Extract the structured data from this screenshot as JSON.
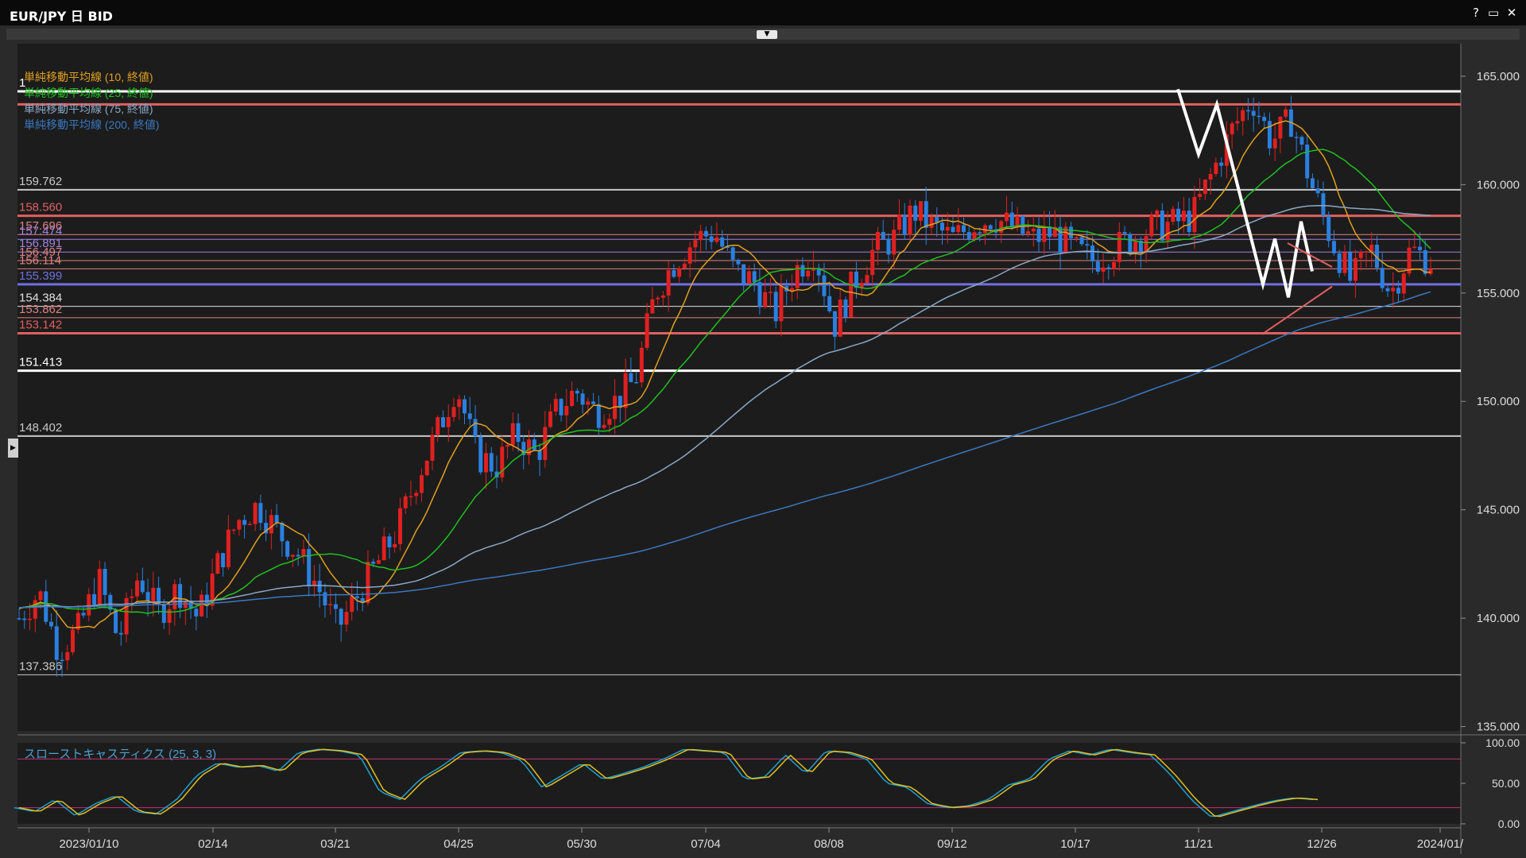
{
  "window": {
    "title": "EUR/JPY 日 BID",
    "buttons": [
      "?",
      "▭",
      "✕"
    ]
  },
  "chart_data": {
    "type": "candlestick",
    "instrument": "EUR/JPY",
    "timeframe": "日",
    "price_type": "BID",
    "x_labels": [
      "2023/01/10",
      "02/14",
      "03/21",
      "04/25",
      "05/30",
      "07/04",
      "08/08",
      "09/12",
      "10/17",
      "11/21",
      "12/26",
      "2024/01/"
    ],
    "y_ticks": [
      "165.000",
      "160.000",
      "155.000",
      "150.000",
      "145.000",
      "140.000",
      "135.000"
    ],
    "ylim": [
      134.8,
      166.5
    ],
    "price_path": [
      140.0,
      141.2,
      138.5,
      139.5,
      141.8,
      139.0,
      142.0,
      140.2,
      141.4,
      140.0,
      142.5,
      144.5,
      145.2,
      144.0,
      143.0,
      141.5,
      139.5,
      141.0,
      142.5,
      144.0,
      146.5,
      148.5,
      150.8,
      147.5,
      147.0,
      148.5,
      147.5,
      149.5,
      150.5,
      149.5,
      150.0,
      151.0,
      155.0,
      156.5,
      157.5,
      157.8,
      156.0,
      155.5,
      154.0,
      156.0,
      157.0,
      153.5,
      155.5,
      157.0,
      157.5,
      158.8,
      158.0,
      157.5,
      158.2,
      158.5,
      158.0,
      157.5,
      157.8,
      157.0,
      156.5,
      157.0,
      157.5,
      158.0,
      158.2,
      158.5,
      160.5,
      162.5,
      164.0,
      162.0,
      163.0,
      160.0,
      157.5,
      155.5,
      157.0,
      155.0,
      157.0,
      156.5
    ],
    "moving_averages": [
      {
        "name": "単純移動平均線 (10, 終値)",
        "color": "#e0a020",
        "period": 10
      },
      {
        "name": "単純移動平均線 (25, 終値)",
        "color": "#20c020",
        "period": 25
      },
      {
        "name": "単純移動平均線 (75, 終値)",
        "color": "#8aa8c8",
        "period": 75
      },
      {
        "name": "単純移動平均線 (200, 終値)",
        "color": "#3a78c0",
        "period": 200
      }
    ],
    "levels": [
      {
        "value": 164.3,
        "label": "1",
        "color": "#ffffff",
        "width": 3
      },
      {
        "value": 163.7,
        "label": "",
        "color": "#e06060",
        "width": 3
      },
      {
        "value": 159.762,
        "label": "159.762",
        "color": "#c8c8c8",
        "width": 2
      },
      {
        "value": 158.56,
        "label": "158.560",
        "color": "#e06060",
        "width": 3
      },
      {
        "value": 157.696,
        "label": "157.696",
        "color": "#e08080",
        "width": 1
      },
      {
        "value": 157.474,
        "label": "157.474",
        "color": "#a080e0",
        "width": 1
      },
      {
        "value": 156.891,
        "label": "156.891",
        "color": "#a080e0",
        "width": 1
      },
      {
        "value": 156.497,
        "label": "156.497",
        "color": "#e08080",
        "width": 1
      },
      {
        "value": 156.114,
        "label": "156.114",
        "color": "#e08080",
        "width": 1
      },
      {
        "value": 155.399,
        "label": "155.399",
        "color": "#7070e0",
        "width": 3
      },
      {
        "value": 154.384,
        "label": "154.384",
        "color": "#e0e0e0",
        "width": 1
      },
      {
        "value": 153.862,
        "label": "153.862",
        "color": "#e08080",
        "width": 1
      },
      {
        "value": 153.142,
        "label": "153.142",
        "color": "#e06060",
        "width": 3
      },
      {
        "value": 151.413,
        "label": "151.413",
        "color": "#ffffff",
        "width": 3
      },
      {
        "value": 148.402,
        "label": "148.402",
        "color": "#c8c8c8",
        "width": 2
      },
      {
        "value": 137.386,
        "label": "137.386",
        "color": "#c8c8c8",
        "width": 1
      }
    ],
    "oscillator": {
      "name": "スローストキャスティクス (25, 3, 3)",
      "y_ticks": [
        "100.00",
        "50.00",
        "0.00"
      ],
      "upper_band": 80,
      "lower_band": 20,
      "values": [
        20,
        15,
        30,
        10,
        25,
        35,
        15,
        12,
        30,
        60,
        75,
        70,
        72,
        65,
        88,
        92,
        90,
        85,
        40,
        30,
        55,
        70,
        88,
        90,
        88,
        78,
        45,
        60,
        75,
        55,
        62,
        70,
        80,
        92,
        90,
        88,
        55,
        58,
        85,
        62,
        90,
        88,
        80,
        50,
        45,
        25,
        20,
        22,
        30,
        48,
        55,
        80,
        90,
        85,
        92,
        88,
        85,
        60,
        30,
        8,
        15,
        22,
        28,
        32,
        30
      ]
    }
  }
}
